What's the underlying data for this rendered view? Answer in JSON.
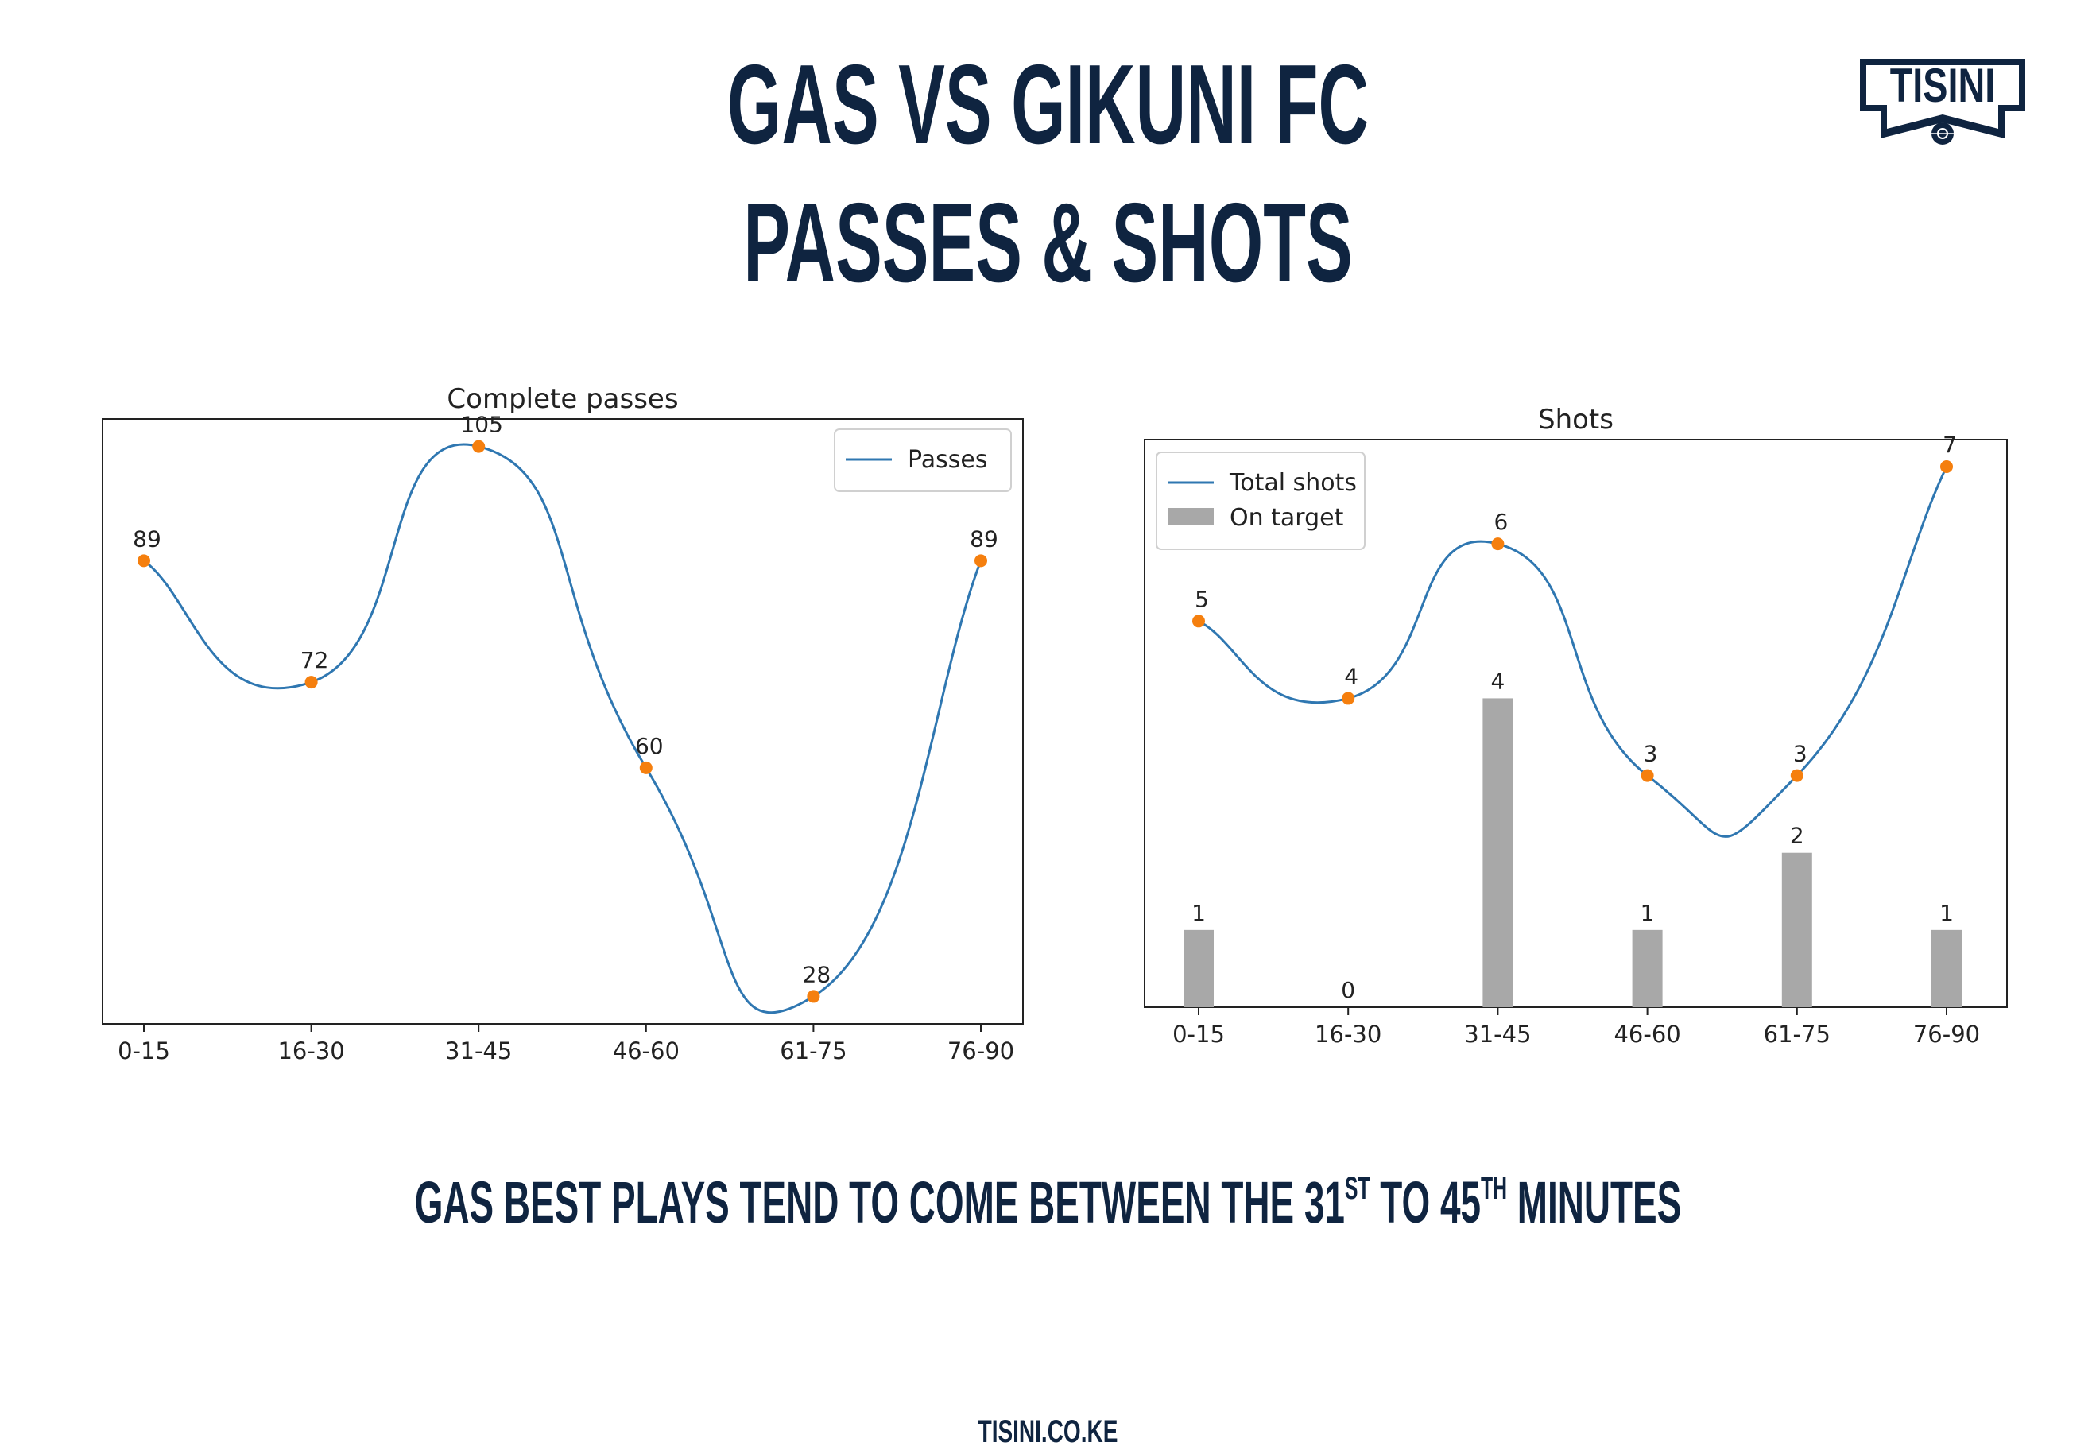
{
  "header": {
    "title_line1": "GAS VS GIKUNI FC",
    "title_line2": "PASSES & SHOTS"
  },
  "logo": {
    "text": "TISINI",
    "icon": "football-icon"
  },
  "caption": {
    "before": "GAS BEST PLAYS TEND TO COME BETWEEN THE 31",
    "sup1": "ST",
    "middle": " TO 45",
    "sup2": "TH",
    "after": " MINUTES"
  },
  "footer": {
    "website": "TISINI.CO.KE"
  },
  "colors": {
    "navy": "#0f2440",
    "line": "#2f77b1",
    "marker": "#f57f0e",
    "bar": "#a8a8a8"
  },
  "chart_data": [
    {
      "type": "line",
      "title": "Complete passes",
      "xlabel": "",
      "ylabel": "",
      "categories": [
        "0-15",
        "16-30",
        "31-45",
        "46-60",
        "61-75",
        "76-90"
      ],
      "series": [
        {
          "name": "Passes",
          "values": [
            89,
            72,
            105,
            60,
            28,
            89
          ]
        }
      ],
      "ylim": [
        24.15,
        108.85
      ],
      "grid": false,
      "legend": "top-right"
    },
    {
      "type": "bar",
      "title": "Shots",
      "xlabel": "",
      "ylabel": "",
      "categories": [
        "0-15",
        "16-30",
        "31-45",
        "46-60",
        "61-75",
        "76-90"
      ],
      "series": [
        {
          "name": "Total shots",
          "type": "line",
          "values": [
            5,
            4,
            6,
            3,
            3,
            7
          ]
        },
        {
          "name": "On target",
          "type": "bar",
          "values": [
            1,
            0,
            4,
            1,
            2,
            1
          ]
        }
      ],
      "ylim": [
        0,
        7.35
      ],
      "grid": false,
      "legend": "top-left"
    }
  ]
}
